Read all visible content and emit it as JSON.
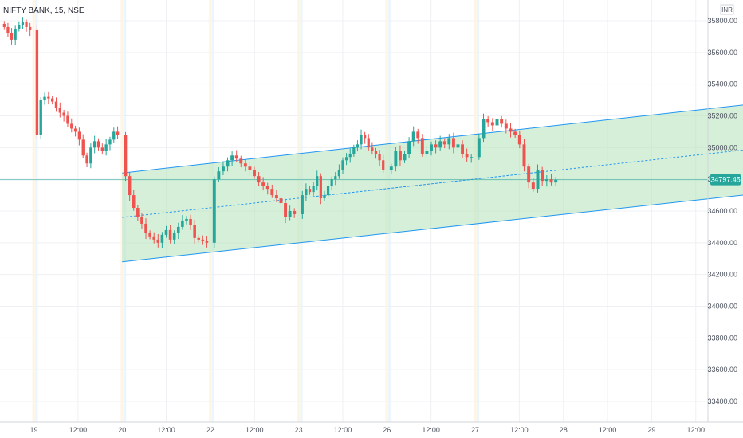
{
  "header": {
    "title": "NIFTY BANK, 15, NSE",
    "currency": "INR"
  },
  "colors": {
    "up": "#26a69a",
    "down": "#ef5350",
    "channel_line": "#2196f3",
    "channel_fill": "#b9e4c0",
    "price_line": "#26a69a",
    "grid": "#eef0f3"
  },
  "chart_data": {
    "type": "candlestick",
    "ylim": [
      33300,
      35900
    ],
    "x_ticks": [
      "19",
      "12:00",
      "20",
      "12:00",
      "22",
      "12:00",
      "23",
      "12:00",
      "26",
      "12:00",
      "27",
      "12:00",
      "28",
      "12:00",
      "29",
      "12:00"
    ],
    "y_ticks": [
      "35800.00",
      "35600.00",
      "35400.00",
      "35200.00",
      "35000.00",
      "34800.00",
      "34600.00",
      "34400.00",
      "34200.00",
      "34000.00",
      "33800.00",
      "33600.00",
      "33400.00"
    ],
    "last_price": "34797.45",
    "closes": [
      35760,
      35720,
      35680,
      35750,
      35770,
      35790,
      35760,
      35740,
      35080,
      35300,
      35320,
      35310,
      35290,
      35250,
      35220,
      35200,
      35150,
      35120,
      35100,
      35050,
      34950,
      34900,
      35000,
      35040,
      35000,
      34980,
      35020,
      35050,
      35100,
      35080,
      34820,
      34700,
      34620,
      34560,
      34520,
      34460,
      34440,
      34420,
      34400,
      34450,
      34480,
      34420,
      34460,
      34500,
      34540,
      34550,
      34510,
      34430,
      34420,
      34410,
      34400,
      34800,
      34850,
      34880,
      34920,
      34950,
      34930,
      34900,
      34880,
      34860,
      34820,
      34780,
      34760,
      34740,
      34700,
      34680,
      34650,
      34560,
      34600,
      34580,
      34700,
      34740,
      34720,
      34760,
      34820,
      34680,
      34700,
      34760,
      34800,
      34820,
      34860,
      34920,
      34940,
      34960,
      35000,
      35020,
      35080,
      35060,
      35000,
      34980,
      34960,
      34920,
      34860,
      34880,
      34980,
      34920,
      34960,
      35040,
      35100,
      35060,
      34960,
      34980,
      35020,
      35000,
      35040,
      35020,
      35060,
      35000,
      35020,
      34960,
      34940,
      34940,
      35060,
      35180,
      35160,
      35140,
      35180,
      35150,
      35120,
      35100,
      35080,
      35020,
      34880,
      34780,
      34740,
      34860,
      34790,
      34800,
      34780,
      34797
    ],
    "channel": {
      "upper": [
        [
          20.0,
          34840
        ],
        [
          28.7,
          35370
        ]
      ],
      "lower": [
        [
          20.0,
          34280
        ],
        [
          28.7,
          34800
        ]
      ],
      "median": [
        [
          20.0,
          34560
        ],
        [
          28.7,
          35085
        ]
      ]
    }
  }
}
